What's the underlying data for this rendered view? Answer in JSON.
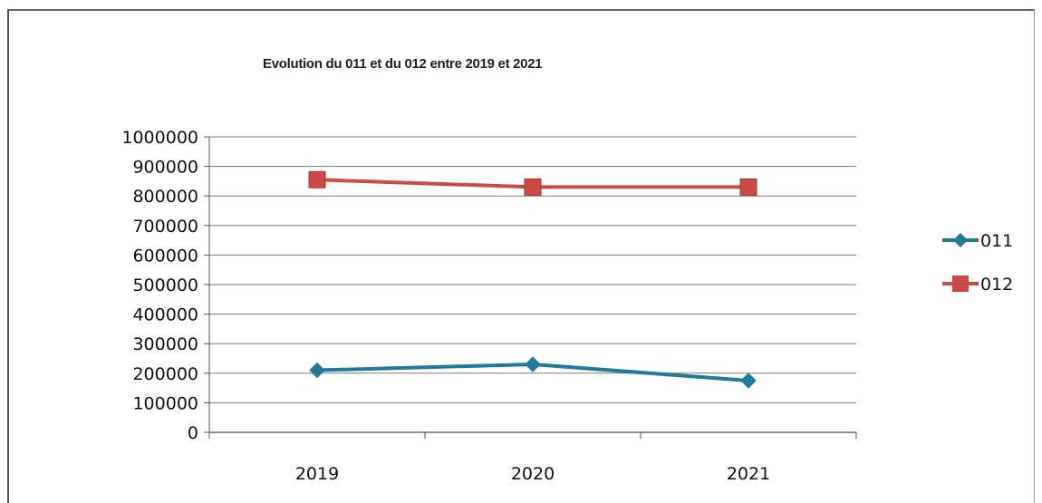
{
  "chart_data": {
    "type": "line",
    "title": "Evolution du 011 et du 012 entre 2019 et 2021",
    "categories": [
      "2019",
      "2020",
      "2021"
    ],
    "series": [
      {
        "name": "011",
        "values": [
          210000,
          230000,
          175000
        ],
        "color": "#1f7a9c",
        "marker": "diamond"
      },
      {
        "name": "012",
        "values": [
          855000,
          830000,
          830000
        ],
        "color": "#cc4a44",
        "marker": "square"
      }
    ],
    "ylim": [
      0,
      1000000
    ],
    "yticks": [
      "0",
      "100000",
      "200000",
      "300000",
      "400000",
      "500000",
      "600000",
      "700000",
      "800000",
      "900000",
      "1000000"
    ],
    "grid": true,
    "legend": "right"
  }
}
